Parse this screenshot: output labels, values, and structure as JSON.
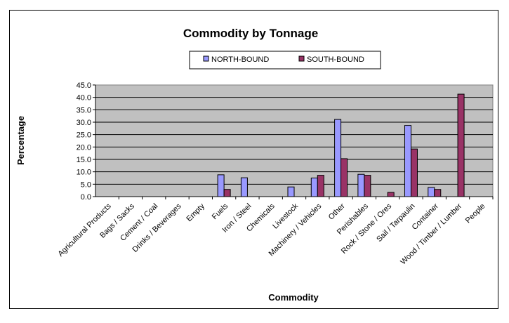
{
  "chart_data": {
    "type": "bar",
    "title": "Commodity by Tonnage",
    "xlabel": "Commodity",
    "ylabel": "Percentage",
    "ylim": [
      0,
      45
    ],
    "yticks": [
      "0.0",
      "5.0",
      "10.0",
      "15.0",
      "20.0",
      "25.0",
      "30.0",
      "35.0",
      "40.0",
      "45.0"
    ],
    "grid": true,
    "legend_position": "top",
    "plot_background": "#C0C0C0",
    "categories": [
      "Agricultural Products",
      "Bags / Sacks",
      "Cement / Coal",
      "Drinks / Beverages",
      "Empty",
      "Fuels",
      "Iron / Steel",
      "Chemicals",
      "Livestock",
      "Machinery / Vehicles",
      "Other",
      "Perishables",
      "Rock / Stone / Ores",
      "Sail / Tarpaulin",
      "Container",
      "Wood / Timber / Lumber",
      "People"
    ],
    "series": [
      {
        "name": "NORTH-BOUND",
        "color": "#9999FF",
        "values": [
          0,
          0,
          0,
          0,
          0,
          8.8,
          7.6,
          0,
          3.9,
          7.5,
          31.1,
          9.0,
          0,
          28.7,
          3.7,
          0,
          0
        ]
      },
      {
        "name": "SOUTH-BOUND",
        "color": "#993366",
        "values": [
          0,
          0,
          0,
          0,
          0,
          2.9,
          0,
          0,
          0,
          8.6,
          15.3,
          8.6,
          1.7,
          19.2,
          2.9,
          41.3,
          0
        ]
      }
    ]
  }
}
